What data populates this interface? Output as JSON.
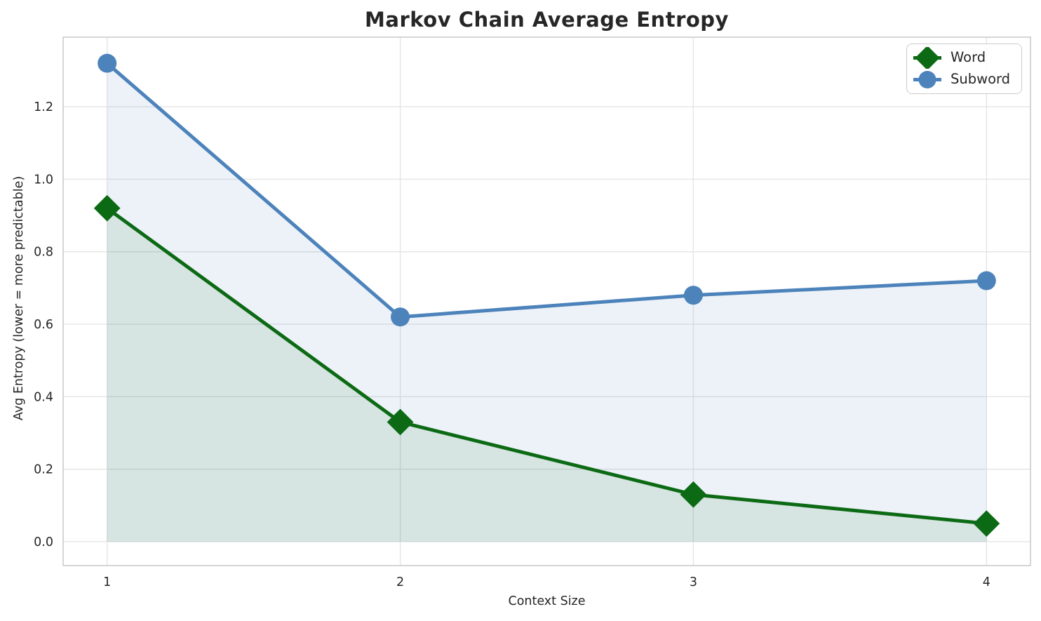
{
  "chart_data": {
    "type": "line",
    "title": "Markov Chain Average Entropy",
    "xlabel": "Context Size",
    "ylabel": "Avg Entropy (lower = more predictable)",
    "x": [
      1,
      2,
      3,
      4
    ],
    "series": [
      {
        "name": "Word",
        "values": [
          0.92,
          0.33,
          0.13,
          0.05
        ],
        "color": "#0c6a14",
        "marker": "diamond",
        "area_fill": true
      },
      {
        "name": "Subword",
        "values": [
          1.32,
          0.62,
          0.68,
          0.72
        ],
        "color": "#4d83bb",
        "marker": "circle",
        "area_fill": true
      }
    ],
    "xticks": [
      1,
      2,
      3,
      4
    ],
    "xtick_labels": [
      "1",
      "2",
      "3",
      "4"
    ],
    "yticks": [
      0.0,
      0.2,
      0.4,
      0.6,
      0.8,
      1.0,
      1.2
    ],
    "ytick_labels": [
      "0.0",
      "0.2",
      "0.4",
      "0.6",
      "0.8",
      "1.0",
      "1.2"
    ],
    "xlim": [
      0.85,
      4.15
    ],
    "ylim": [
      -0.066,
      1.392
    ],
    "grid": true,
    "fill_alpha": 0.1,
    "fill_baseline": 0.0,
    "legend_position": "upper right",
    "style": {
      "grid_color": "#e5e5e5",
      "spine_color": "#cccccc",
      "text_color": "#262626",
      "background": "#ffffff",
      "line_width": 5
    }
  }
}
